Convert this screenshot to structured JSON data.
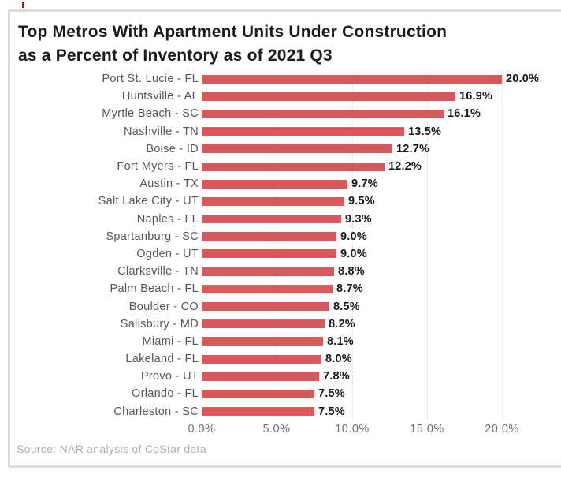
{
  "title": {
    "line1": "Top Metros With Apartment Units Under Construction",
    "line2": "as a Percent of Inventory as of 2021 Q3"
  },
  "source": "Source: NAR analysis of CoStar data",
  "chart_data": {
    "type": "bar",
    "orientation": "horizontal",
    "title": "Top Metros With Apartment Units Under Construction as a Percent of Inventory as of 2021 Q3",
    "xlabel": "",
    "ylabel": "",
    "categories": [
      "Port St. Lucie - FL",
      "Huntsville - AL",
      "Myrtle Beach - SC",
      "Nashville - TN",
      "Boise - ID",
      "Fort Myers - FL",
      "Austin - TX",
      "Salt Lake City - UT",
      "Naples - FL",
      "Spartanburg - SC",
      "Ogden - UT",
      "Clarksville - TN",
      "Palm Beach - FL",
      "Boulder - CO",
      "Salisbury - MD",
      "Miami - FL",
      "Lakeland - FL",
      "Provo - UT",
      "Orlando - FL",
      "Charleston - SC"
    ],
    "values": [
      20.0,
      16.9,
      16.1,
      13.5,
      12.7,
      12.2,
      9.7,
      9.5,
      9.3,
      9.0,
      9.0,
      8.8,
      8.7,
      8.5,
      8.2,
      8.1,
      8.0,
      7.8,
      7.5,
      7.5
    ],
    "value_labels": [
      "20.0%",
      "16.9%",
      "16.1%",
      "13.5%",
      "12.7%",
      "12.2%",
      "9.7%",
      "9.5%",
      "9.3%",
      "9.0%",
      "9.0%",
      "8.8%",
      "8.7%",
      "8.5%",
      "8.2%",
      "8.1%",
      "8.0%",
      "7.8%",
      "7.5%",
      "7.5%"
    ],
    "xlim": [
      0,
      20
    ],
    "x_tick_values": [
      0,
      5,
      10,
      15,
      20
    ],
    "x_tick_labels": [
      "0.0%",
      "5.0%",
      "10.0%",
      "15.0%",
      "20.0%"
    ],
    "grid": "vertical",
    "legend_position": "none",
    "bar_color": "#d65a5c",
    "grid_color": "#ececec"
  },
  "colors": {
    "bar": "#d65a5c",
    "grid": "#ececec",
    "panel_border": "#dedede",
    "title_text": "#1c1c1e",
    "category_text": "#55575c",
    "value_text": "#18181a",
    "axis_text": "#6b6e73",
    "source_text": "#a9aeb4"
  }
}
